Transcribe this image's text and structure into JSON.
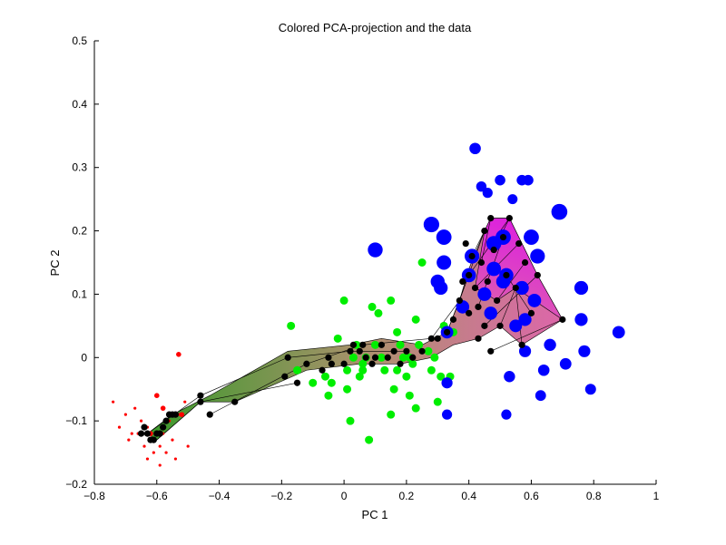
{
  "chart_data": {
    "type": "scatter",
    "title": "Colored PCA-projection and the data",
    "xlabel": "PC 1",
    "ylabel": "PC 2",
    "xlim": [
      -0.8,
      1
    ],
    "ylim": [
      -0.2,
      0.5
    ],
    "grid": false,
    "xticks": [
      "−0.8",
      "−0.6",
      "−0.4",
      "−0.2",
      "0",
      "0.2",
      "0.4",
      "0.6",
      "0.8",
      "1"
    ],
    "yticks": [
      "−0.2",
      "−0.1",
      "0",
      "0.1",
      "0.2",
      "0.3",
      "0.4",
      "0.5"
    ],
    "colors": {
      "red": "#ff0000",
      "green": "#00ee00",
      "blue": "#0000ff",
      "black": "#000000"
    },
    "surface_colors": {
      "green_end": "#3a9a2a",
      "mid": "#b09070",
      "pink": "#dd66aa",
      "magenta": "#dd22dd"
    },
    "series": [
      {
        "color": "red",
        "points": [
          [
            -0.74,
            -0.07
          ],
          [
            -0.72,
            -0.11
          ],
          [
            -0.7,
            -0.09
          ],
          [
            -0.69,
            -0.13
          ],
          [
            -0.68,
            -0.12
          ],
          [
            -0.67,
            -0.08
          ],
          [
            -0.66,
            -0.12
          ],
          [
            -0.65,
            -0.1
          ],
          [
            -0.64,
            -0.14
          ],
          [
            -0.63,
            -0.11
          ],
          [
            -0.63,
            -0.16
          ],
          [
            -0.62,
            -0.12
          ],
          [
            -0.61,
            -0.15
          ],
          [
            -0.61,
            -0.13
          ],
          [
            -0.6,
            -0.12
          ],
          [
            -0.59,
            -0.17
          ],
          [
            -0.59,
            -0.14
          ],
          [
            -0.58,
            -0.12
          ],
          [
            -0.57,
            -0.15
          ],
          [
            -0.56,
            -0.1
          ],
          [
            -0.55,
            -0.13
          ],
          [
            -0.54,
            -0.16
          ],
          [
            -0.53,
            -0.09
          ],
          [
            -0.51,
            -0.07
          ],
          [
            -0.5,
            -0.14
          ],
          [
            -0.52,
            -0.09
          ],
          [
            -0.6,
            -0.06
          ],
          [
            -0.58,
            -0.08
          ],
          [
            -0.53,
            0.005
          ],
          [
            -0.52,
            -0.09
          ],
          [
            -0.6,
            -0.12
          ],
          [
            -0.62,
            -0.12
          ]
        ]
      },
      {
        "color": "green",
        "points": [
          [
            -0.17,
            0.05
          ],
          [
            -0.15,
            -0.02
          ],
          [
            -0.1,
            -0.04
          ],
          [
            -0.06,
            -0.03
          ],
          [
            -0.05,
            -0.06
          ],
          [
            -0.04,
            -0.04
          ],
          [
            -0.02,
            0.03
          ],
          [
            0.0,
            0.09
          ],
          [
            0.01,
            -0.02
          ],
          [
            0.01,
            -0.05
          ],
          [
            0.02,
            -0.1
          ],
          [
            0.03,
            0.0
          ],
          [
            0.04,
            0.02
          ],
          [
            0.05,
            -0.03
          ],
          [
            0.06,
            -0.01
          ],
          [
            0.06,
            -0.02
          ],
          [
            0.07,
            0.0
          ],
          [
            0.08,
            -0.13
          ],
          [
            0.09,
            0.08
          ],
          [
            0.1,
            0.02
          ],
          [
            0.11,
            0.07
          ],
          [
            0.12,
            0.0
          ],
          [
            0.13,
            -0.02
          ],
          [
            0.15,
            0.09
          ],
          [
            0.16,
            -0.05
          ],
          [
            0.17,
            0.04
          ],
          [
            0.18,
            0.02
          ],
          [
            0.19,
            0.0
          ],
          [
            0.2,
            -0.03
          ],
          [
            0.21,
            -0.06
          ],
          [
            0.22,
            -0.01
          ],
          [
            0.23,
            0.06
          ],
          [
            0.24,
            0.02
          ],
          [
            0.25,
            0.15
          ],
          [
            0.27,
            0.01
          ],
          [
            0.28,
            -0.02
          ],
          [
            0.29,
            0.0
          ],
          [
            0.3,
            -0.07
          ],
          [
            0.31,
            -0.03
          ],
          [
            0.32,
            0.05
          ],
          [
            0.34,
            -0.03
          ],
          [
            0.35,
            0.04
          ],
          [
            0.21,
            0.0
          ],
          [
            0.15,
            -0.09
          ],
          [
            0.23,
            -0.08
          ],
          [
            0.17,
            -0.02
          ]
        ]
      },
      {
        "color": "blue",
        "points": [
          [
            0.1,
            0.17
          ],
          [
            0.28,
            0.21
          ],
          [
            0.32,
            0.19
          ],
          [
            0.32,
            0.15
          ],
          [
            0.3,
            0.12
          ],
          [
            0.31,
            0.11
          ],
          [
            0.33,
            0.04
          ],
          [
            0.33,
            -0.04
          ],
          [
            0.33,
            -0.09
          ],
          [
            0.38,
            0.08
          ],
          [
            0.4,
            0.13
          ],
          [
            0.41,
            0.16
          ],
          [
            0.42,
            0.33
          ],
          [
            0.44,
            0.27
          ],
          [
            0.45,
            0.1
          ],
          [
            0.46,
            0.26
          ],
          [
            0.47,
            0.07
          ],
          [
            0.48,
            0.14
          ],
          [
            0.48,
            0.18
          ],
          [
            0.5,
            0.28
          ],
          [
            0.51,
            0.19
          ],
          [
            0.51,
            0.12
          ],
          [
            0.52,
            0.13
          ],
          [
            0.52,
            -0.09
          ],
          [
            0.53,
            -0.03
          ],
          [
            0.54,
            0.25
          ],
          [
            0.55,
            0.05
          ],
          [
            0.57,
            0.28
          ],
          [
            0.57,
            0.11
          ],
          [
            0.58,
            0.01
          ],
          [
            0.58,
            0.06
          ],
          [
            0.59,
            0.28
          ],
          [
            0.6,
            0.19
          ],
          [
            0.61,
            0.09
          ],
          [
            0.62,
            0.16
          ],
          [
            0.63,
            -0.06
          ],
          [
            0.64,
            -0.02
          ],
          [
            0.66,
            0.02
          ],
          [
            0.69,
            0.23
          ],
          [
            0.71,
            -0.01
          ],
          [
            0.76,
            0.11
          ],
          [
            0.76,
            0.06
          ],
          [
            0.77,
            0.01
          ],
          [
            0.79,
            -0.05
          ],
          [
            0.88,
            0.04
          ]
        ]
      },
      {
        "color": "black",
        "points": [
          [
            -0.65,
            -0.12
          ],
          [
            -0.64,
            -0.11
          ],
          [
            -0.63,
            -0.12
          ],
          [
            -0.62,
            -0.13
          ],
          [
            -0.61,
            -0.13
          ],
          [
            -0.6,
            -0.12
          ],
          [
            -0.59,
            -0.12
          ],
          [
            -0.58,
            -0.11
          ],
          [
            -0.57,
            -0.1
          ],
          [
            -0.56,
            -0.09
          ],
          [
            -0.55,
            -0.09
          ],
          [
            -0.54,
            -0.09
          ],
          [
            -0.46,
            -0.06
          ],
          [
            -0.46,
            -0.07
          ],
          [
            -0.43,
            -0.09
          ],
          [
            -0.35,
            -0.07
          ],
          [
            -0.19,
            -0.03
          ],
          [
            -0.18,
            0.0
          ],
          [
            -0.15,
            -0.04
          ],
          [
            -0.12,
            -0.01
          ],
          [
            -0.07,
            -0.02
          ],
          [
            -0.05,
            0.0
          ],
          [
            -0.04,
            -0.01
          ],
          [
            0.0,
            -0.01
          ],
          [
            0.02,
            0.01
          ],
          [
            0.03,
            0.02
          ],
          [
            0.05,
            0.01
          ],
          [
            0.06,
            0.02
          ],
          [
            0.07,
            0.0
          ],
          [
            0.09,
            -0.01
          ],
          [
            0.1,
            0.0
          ],
          [
            0.12,
            0.02
          ],
          [
            0.14,
            0.0
          ],
          [
            0.16,
            0.01
          ],
          [
            0.18,
            -0.01
          ],
          [
            0.2,
            0.01
          ],
          [
            0.22,
            0.0
          ],
          [
            0.25,
            0.01
          ],
          [
            0.28,
            0.03
          ],
          [
            0.3,
            0.03
          ],
          [
            0.33,
            0.04
          ],
          [
            0.35,
            0.06
          ],
          [
            0.37,
            0.09
          ],
          [
            0.38,
            0.12
          ],
          [
            0.39,
            0.18
          ],
          [
            0.4,
            0.13
          ],
          [
            0.41,
            0.16
          ],
          [
            0.42,
            0.11
          ],
          [
            0.43,
            0.08
          ],
          [
            0.44,
            0.15
          ],
          [
            0.45,
            0.2
          ],
          [
            0.46,
            0.12
          ],
          [
            0.47,
            0.22
          ],
          [
            0.48,
            0.17
          ],
          [
            0.49,
            0.09
          ],
          [
            0.5,
            0.05
          ],
          [
            0.51,
            0.19
          ],
          [
            0.52,
            0.13
          ],
          [
            0.53,
            0.22
          ],
          [
            0.55,
            0.11
          ],
          [
            0.56,
            0.18
          ],
          [
            0.57,
            0.02
          ],
          [
            0.58,
            0.15
          ],
          [
            0.6,
            0.07
          ],
          [
            0.62,
            0.13
          ],
          [
            0.7,
            0.06
          ],
          [
            0.4,
            0.07
          ],
          [
            0.43,
            0.03
          ],
          [
            0.47,
            0.01
          ],
          [
            0.45,
            0.05
          ]
        ]
      }
    ]
  }
}
